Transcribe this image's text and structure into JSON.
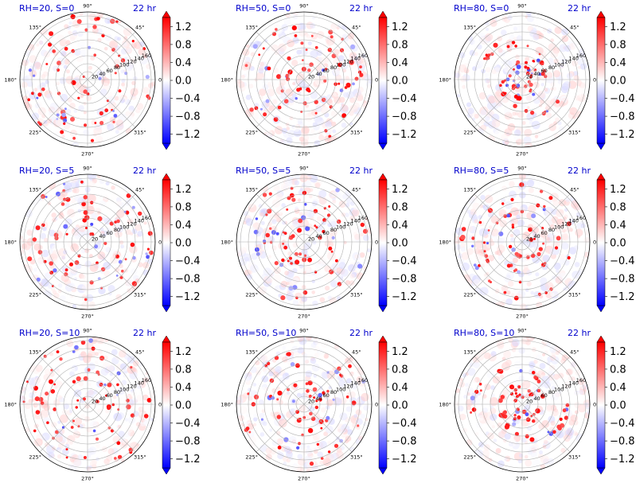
{
  "chart_data": {
    "type": "polar-heatmap",
    "colormap": "bwr",
    "colorbar": {
      "ticks": [
        "1.2",
        "0.8",
        "0.4",
        "0.0",
        "−0.4",
        "−0.8",
        "−1.2"
      ],
      "tick_values": [
        1.2,
        0.8,
        0.4,
        0.0,
        -0.4,
        -0.8,
        -1.2
      ],
      "range": [
        -1.4,
        1.4
      ],
      "extend": "both",
      "colors": {
        "max": "#ff0000",
        "mid": "#ffffff",
        "min": "#0000ff"
      }
    },
    "angle_labels": [
      "90°",
      "45°",
      "0°",
      "315°",
      "270°",
      "225°",
      "180°",
      "135°"
    ],
    "radial_labels": [
      "20",
      "40",
      "60",
      "80",
      "100",
      "120",
      "140",
      "160"
    ],
    "rmax": 170,
    "title_color": "#0000cc",
    "panels": [
      {
        "title": "RH=20, S=0",
        "time": "22 hr",
        "pattern": "scattered",
        "seed": 11
      },
      {
        "title": "RH=50, S=0",
        "time": "22 hr",
        "pattern": "clustered",
        "seed": 23
      },
      {
        "title": "RH=80, S=0",
        "time": "22 hr",
        "pattern": "core",
        "seed": 37
      },
      {
        "title": "RH=20, S=5",
        "time": "22 hr",
        "pattern": "scattered",
        "seed": 41
      },
      {
        "title": "RH=50, S=5",
        "time": "22 hr",
        "pattern": "clustered",
        "seed": 53
      },
      {
        "title": "RH=80, S=5",
        "time": "22 hr",
        "pattern": "spiral",
        "seed": 67
      },
      {
        "title": "RH=20, S=10",
        "time": "22 hr",
        "pattern": "scattered",
        "seed": 71
      },
      {
        "title": "RH=50, S=10",
        "time": "22 hr",
        "pattern": "clustered",
        "seed": 83
      },
      {
        "title": "RH=80, S=10",
        "time": "22 hr",
        "pattern": "core",
        "seed": 97
      }
    ]
  }
}
